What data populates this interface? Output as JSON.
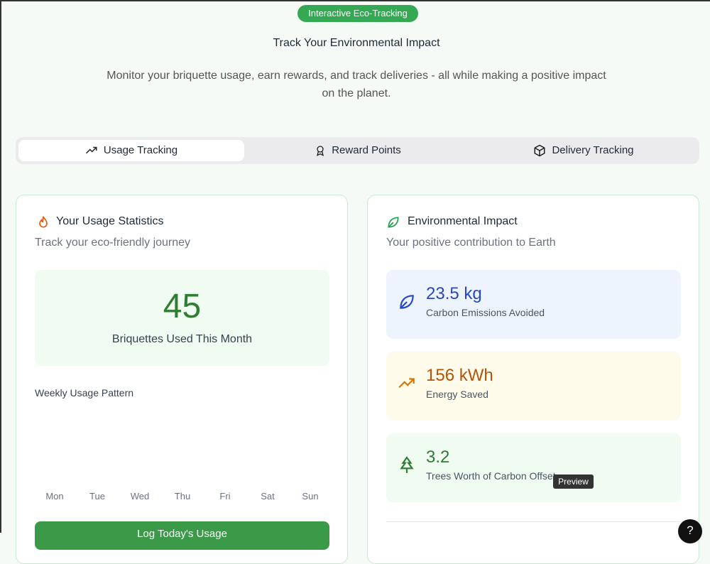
{
  "badge": "Interactive Eco-Tracking",
  "header": {
    "title": "Track Your Environmental Impact",
    "subtitle": "Monitor your briquette usage, earn rewards, and track deliveries - all while making a positive impact on the planet."
  },
  "tabs": [
    "Usage Tracking",
    "Reward Points",
    "Delivery Tracking"
  ],
  "usage_card": {
    "title": "Your Usage Statistics",
    "subtitle": "Track your eco-friendly journey",
    "stat_value": 45,
    "stat_label": "Briquettes Used This Month",
    "chart_title": "Weekly Usage Pattern",
    "days": [
      "Mon",
      "Tue",
      "Wed",
      "Thu",
      "Fri",
      "Sat",
      "Sun"
    ],
    "button": "Log Today's Usage"
  },
  "impact_card": {
    "title": "Environmental Impact",
    "subtitle": "Your positive contribution to Earth",
    "metrics": [
      {
        "value": "23.5 kg",
        "label": "Carbon Emissions Avoided"
      },
      {
        "value": "156 kWh",
        "label": "Energy Saved"
      },
      {
        "value": "3.2",
        "label": "Trees Worth of Carbon Offset"
      }
    ]
  },
  "tooltip": "Preview",
  "help": "?"
}
